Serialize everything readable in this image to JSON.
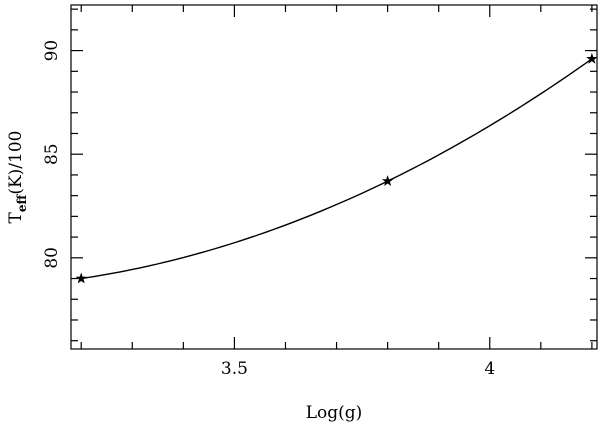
{
  "chart_data": {
    "type": "line",
    "title": "",
    "xlabel": "Log(g)",
    "ylabel_main": "T",
    "ylabel_sub": "eff",
    "ylabel_rest": "(K)/100",
    "xlim": [
      3.18,
      4.21
    ],
    "ylim": [
      75.6,
      92.2
    ],
    "x_ticks_labeled": [
      {
        "value": 3.5,
        "label": "3.5"
      },
      {
        "value": 4.0,
        "label": "4"
      }
    ],
    "y_ticks_labeled": [
      {
        "value": 80,
        "label": "80"
      },
      {
        "value": 85,
        "label": "85"
      },
      {
        "value": 90,
        "label": "90"
      }
    ],
    "x_minor_step": 0.1,
    "y_minor_step": 1,
    "grid": false,
    "series": [
      {
        "x": [
          3.2,
          3.8,
          4.2
        ],
        "values": [
          79.0,
          83.7,
          89.6
        ],
        "marker": "star",
        "line": "smooth"
      }
    ]
  }
}
